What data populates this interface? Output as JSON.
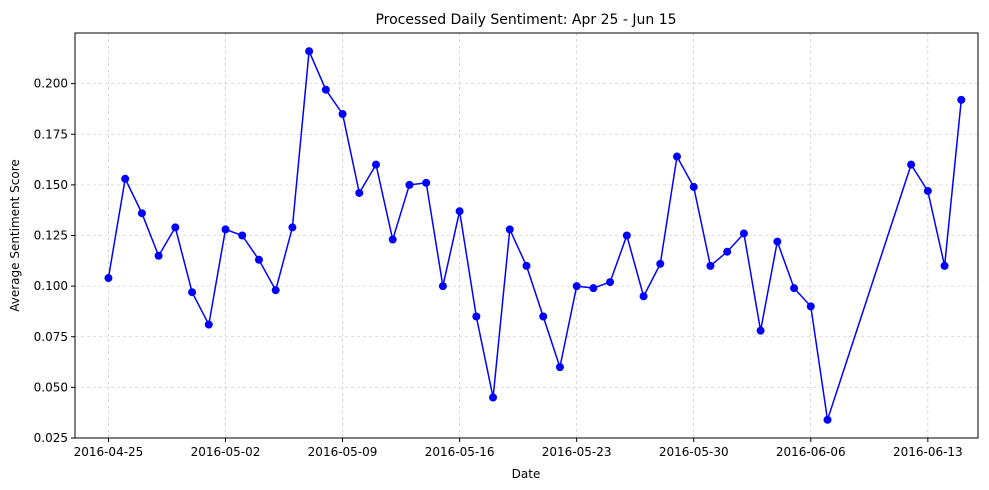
{
  "chart_data": {
    "type": "line",
    "title": "Processed Daily Sentiment: Apr 25 - Jun 15",
    "xlabel": "Date",
    "ylabel": "Average Sentiment Score",
    "xlim": [
      "2016-04-23",
      "2016-06-16"
    ],
    "ylim": [
      0.025,
      0.225
    ],
    "x_ticks": [
      "2016-04-25",
      "2016-05-02",
      "2016-05-09",
      "2016-05-16",
      "2016-05-23",
      "2016-05-30",
      "2016-06-06",
      "2016-06-13"
    ],
    "y_ticks": [
      0.025,
      0.05,
      0.075,
      0.1,
      0.125,
      0.15,
      0.175,
      0.2
    ],
    "y_tick_labels": [
      "0.025",
      "0.050",
      "0.075",
      "0.100",
      "0.125",
      "0.150",
      "0.175",
      "0.200"
    ],
    "grid": true,
    "series_color": "#0000ff",
    "series": [
      {
        "x": [
          "2016-04-25",
          "2016-04-26",
          "2016-04-27",
          "2016-04-28",
          "2016-04-29",
          "2016-04-30",
          "2016-05-01",
          "2016-05-02",
          "2016-05-03",
          "2016-05-04",
          "2016-05-05",
          "2016-05-06",
          "2016-05-07",
          "2016-05-08",
          "2016-05-09",
          "2016-05-10",
          "2016-05-11",
          "2016-05-12",
          "2016-05-13",
          "2016-05-14",
          "2016-05-15",
          "2016-05-16",
          "2016-05-17",
          "2016-05-18",
          "2016-05-19",
          "2016-05-20",
          "2016-05-21",
          "2016-05-22",
          "2016-05-23",
          "2016-05-24",
          "2016-05-25",
          "2016-05-26",
          "2016-05-27",
          "2016-05-28",
          "2016-05-29",
          "2016-05-30",
          "2016-05-31",
          "2016-06-01",
          "2016-06-02",
          "2016-06-03",
          "2016-06-04",
          "2016-06-05",
          "2016-06-06",
          "2016-06-07",
          "2016-06-12",
          "2016-06-13",
          "2016-06-14",
          "2016-06-15"
        ],
        "values": [
          0.104,
          0.153,
          0.136,
          0.115,
          0.129,
          0.097,
          0.081,
          0.128,
          0.125,
          0.113,
          0.098,
          0.129,
          0.216,
          0.197,
          0.185,
          0.146,
          0.16,
          0.123,
          0.15,
          0.151,
          0.1,
          0.137,
          0.085,
          0.045,
          0.128,
          0.11,
          0.085,
          0.06,
          0.1,
          0.099,
          0.102,
          0.125,
          0.095,
          0.111,
          0.164,
          0.149,
          0.11,
          0.117,
          0.126,
          0.078,
          0.122,
          0.099,
          0.09,
          0.034,
          0.16,
          0.147,
          0.11,
          0.192
        ]
      }
    ]
  }
}
